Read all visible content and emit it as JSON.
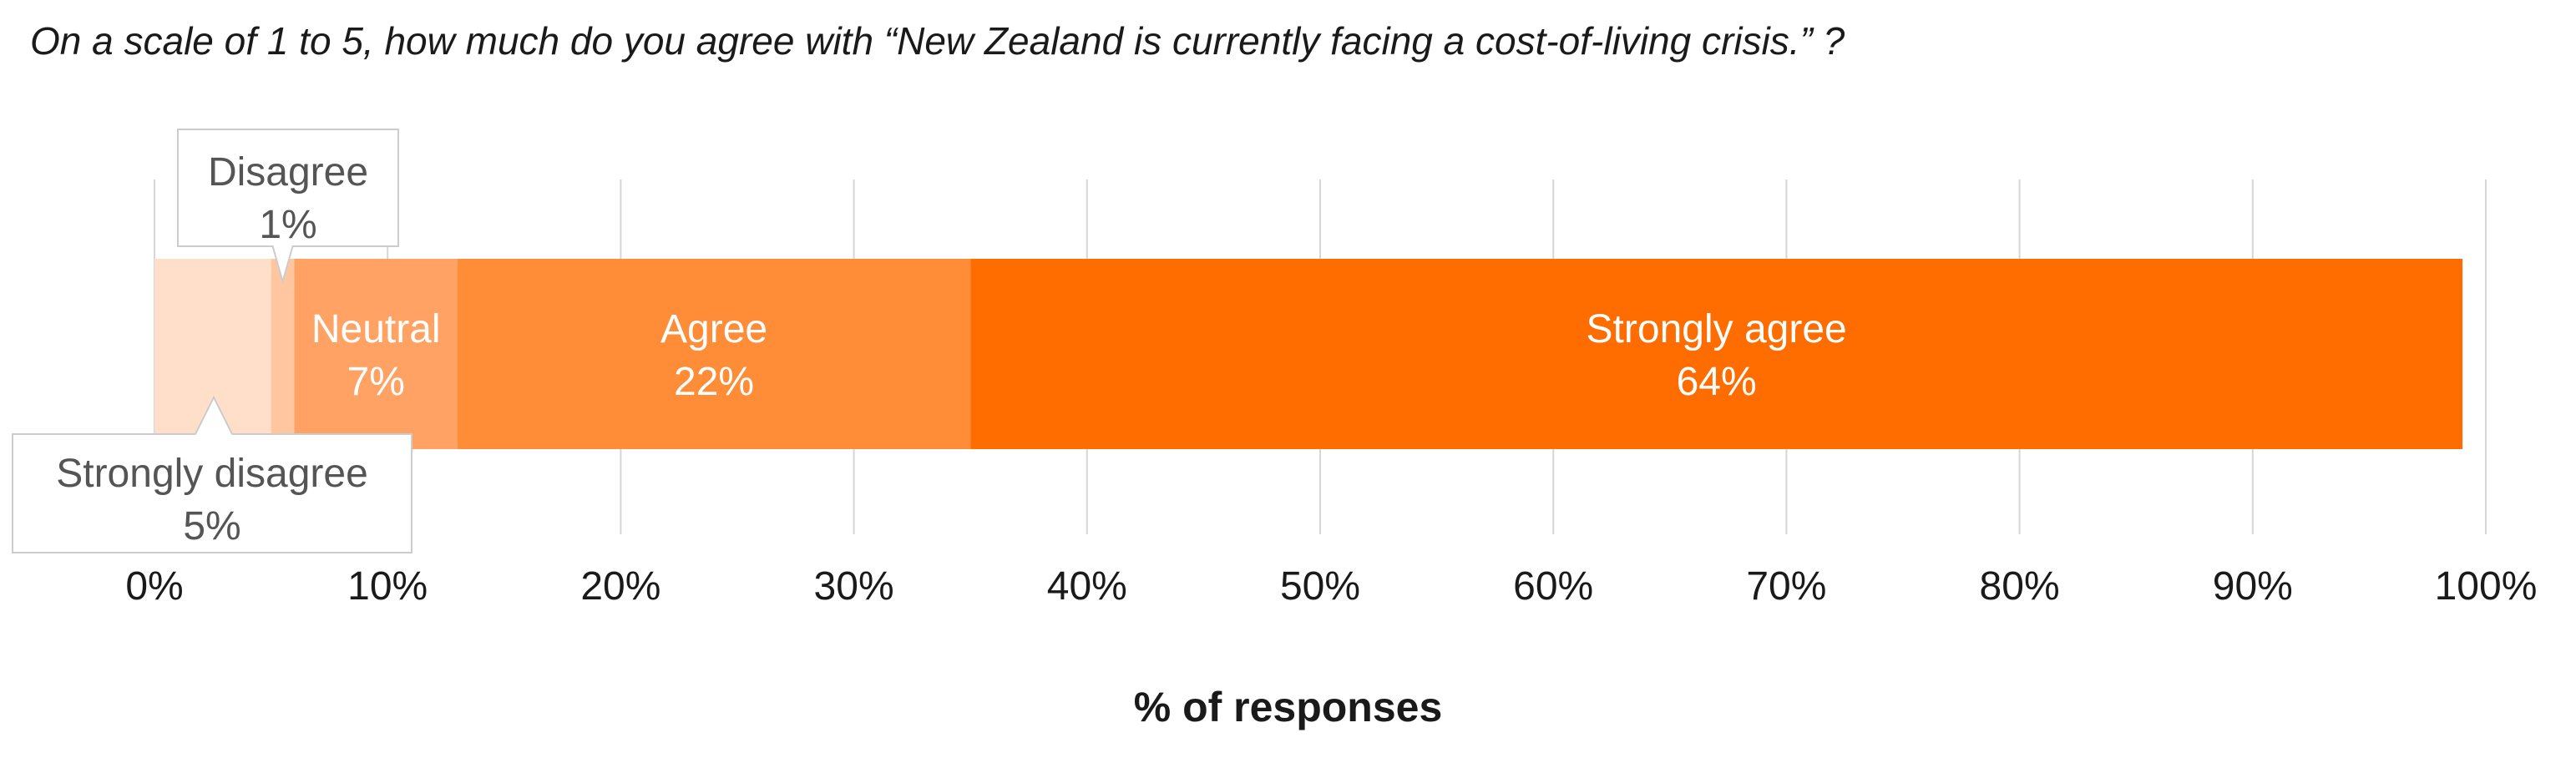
{
  "title": "On a scale of 1 to 5, how much do you agree with “New Zealand is currently facing a cost-of-living crisis.” ?",
  "chart_data": {
    "type": "bar",
    "orientation": "horizontal",
    "stacked": true,
    "title": "On a scale of 1 to 5, how much do you agree with “New Zealand is currently facing a cost-of-living crisis.” ?",
    "xlabel": "% of responses",
    "ylabel": "",
    "xlim": [
      0,
      100
    ],
    "grid": true,
    "xticks": [
      "0%",
      "10%",
      "20%",
      "30%",
      "40%",
      "50%",
      "60%",
      "70%",
      "80%",
      "90%",
      "100%"
    ],
    "xtick_values": [
      0,
      10,
      20,
      30,
      40,
      50,
      60,
      70,
      80,
      90,
      100
    ],
    "series": [
      {
        "name": "Strongly disagree",
        "value": 5,
        "label": "5%",
        "color": "#ffdfc9",
        "label_style": "callout-below"
      },
      {
        "name": "Disagree",
        "value": 1,
        "label": "1%",
        "color": "#ffc6a0",
        "label_style": "callout-above"
      },
      {
        "name": "Neutral",
        "value": 7,
        "label": "7%",
        "color": "#ffa263",
        "label_style": "inside"
      },
      {
        "name": "Agree",
        "value": 22,
        "label": "22%",
        "color": "#ff8c37",
        "label_style": "inside"
      },
      {
        "name": "Strongly agree",
        "value": 64,
        "label": "64%",
        "color": "#ff6c00",
        "label_style": "inside"
      }
    ]
  }
}
